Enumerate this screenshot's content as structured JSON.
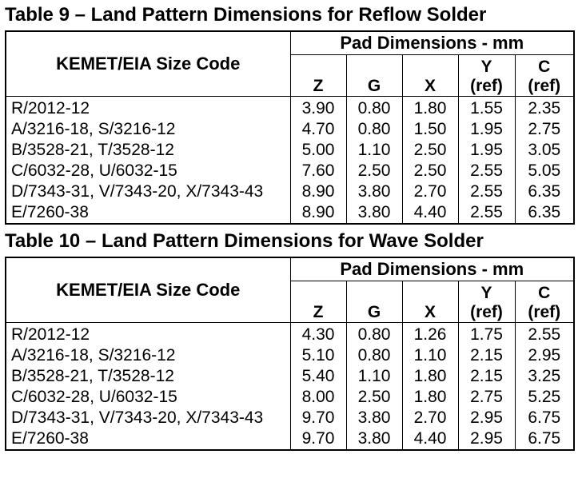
{
  "tables": [
    {
      "title": "Table 9 – Land Pattern Dimensions for Reflow Solder",
      "size_code_header": "KEMET/EIA Size Code",
      "pad_header": "Pad Dimensions - mm",
      "columns": [
        "Z",
        "G",
        "X",
        "Y\n(ref)",
        "C\n(ref)"
      ],
      "rows": [
        {
          "code": "R/2012-12",
          "values": [
            "3.90",
            "0.80",
            "1.80",
            "1.55",
            "2.35"
          ]
        },
        {
          "code": "A/3216-18, S/3216-12",
          "values": [
            "4.70",
            "0.80",
            "1.50",
            "1.95",
            "2.75"
          ]
        },
        {
          "code": "B/3528-21, T/3528-12",
          "values": [
            "5.00",
            "1.10",
            "2.50",
            "1.95",
            "3.05"
          ]
        },
        {
          "code": "C/6032-28, U/6032-15",
          "values": [
            "7.60",
            "2.50",
            "2.50",
            "2.55",
            "5.05"
          ]
        },
        {
          "code": "D/7343-31, V/7343-20, X/7343-43",
          "values": [
            "8.90",
            "3.80",
            "2.70",
            "2.55",
            "6.35"
          ]
        },
        {
          "code": "E/7260-38",
          "values": [
            "8.90",
            "3.80",
            "4.40",
            "2.55",
            "6.35"
          ]
        }
      ]
    },
    {
      "title": "Table 10 – Land Pattern Dimensions for Wave Solder",
      "size_code_header": "KEMET/EIA Size Code",
      "pad_header": "Pad Dimensions - mm",
      "columns": [
        "Z",
        "G",
        "X",
        "Y\n(ref)",
        "C\n(ref)"
      ],
      "rows": [
        {
          "code": "R/2012-12",
          "values": [
            "4.30",
            "0.80",
            "1.26",
            "1.75",
            "2.55"
          ]
        },
        {
          "code": "A/3216-18, S/3216-12",
          "values": [
            "5.10",
            "0.80",
            "1.10",
            "2.15",
            "2.95"
          ]
        },
        {
          "code": "B/3528-21, T/3528-12",
          "values": [
            "5.40",
            "1.10",
            "1.80",
            "2.15",
            "3.25"
          ]
        },
        {
          "code": "C/6032-28, U/6032-15",
          "values": [
            "8.00",
            "2.50",
            "1.80",
            "2.75",
            "5.25"
          ]
        },
        {
          "code": "D/7343-31, V/7343-20, X/7343-43",
          "values": [
            "9.70",
            "3.80",
            "2.70",
            "2.95",
            "6.75"
          ]
        },
        {
          "code": "E/7260-38",
          "values": [
            "9.70",
            "3.80",
            "4.40",
            "2.95",
            "6.75"
          ]
        }
      ]
    }
  ]
}
